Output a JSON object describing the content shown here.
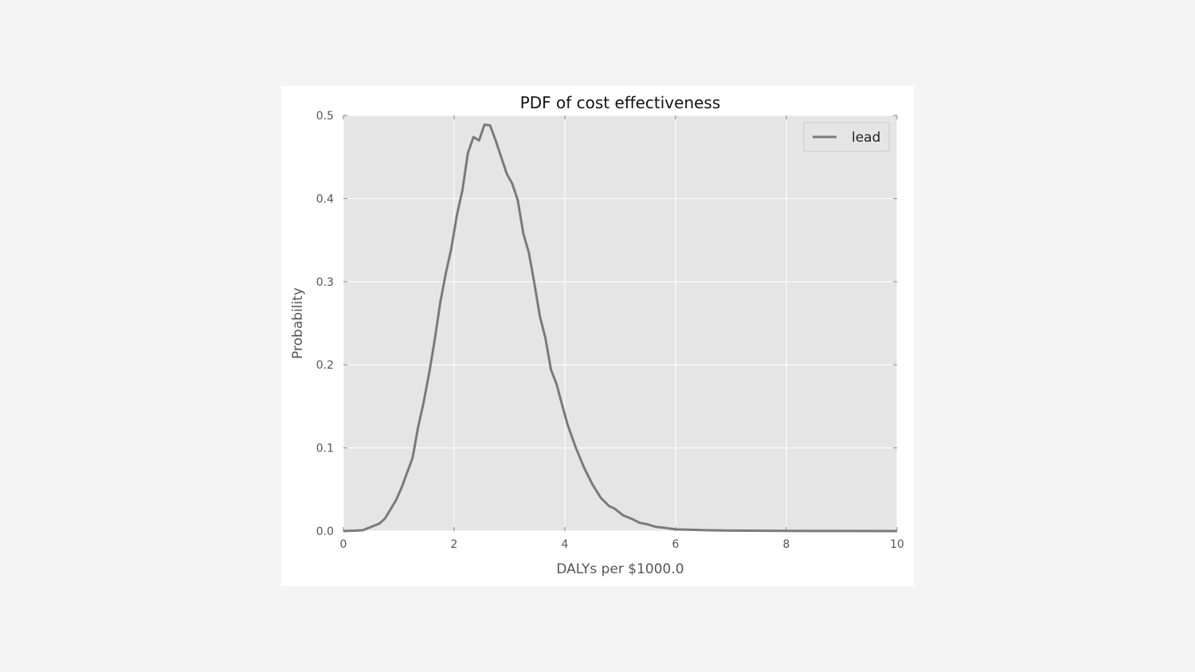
{
  "chart_data": {
    "type": "line",
    "title": "PDF of cost effectiveness",
    "xlabel": "DALYs per $1000.0",
    "ylabel": "Probability",
    "xlim": [
      0,
      10
    ],
    "ylim": [
      0,
      0.5
    ],
    "x_ticks": [
      0,
      2,
      4,
      6,
      8,
      10
    ],
    "x_tick_labels": [
      "0",
      "2",
      "4",
      "6",
      "8",
      "10"
    ],
    "y_ticks": [
      0,
      0.1,
      0.2,
      0.3,
      0.4,
      0.5
    ],
    "y_tick_labels": [
      "0.0",
      "0.1",
      "0.2",
      "0.3",
      "0.4",
      "0.5"
    ],
    "grid": true,
    "legend_position": "top-right",
    "colors": {
      "plot_background": "#e5e5e5",
      "grid": "#ffffff",
      "line": "#7a7a7a"
    },
    "series": [
      {
        "name": "lead",
        "x": [
          0,
          0.35,
          0.5,
          0.65,
          0.75,
          0.85,
          0.95,
          1.05,
          1.15,
          1.25,
          1.35,
          1.45,
          1.55,
          1.65,
          1.75,
          1.85,
          1.95,
          2.05,
          2.15,
          2.25,
          2.35,
          2.45,
          2.55,
          2.65,
          2.75,
          2.85,
          2.95,
          3.05,
          3.15,
          3.25,
          3.35,
          3.45,
          3.55,
          3.65,
          3.75,
          3.85,
          3.95,
          4.05,
          4.2,
          4.35,
          4.5,
          4.65,
          4.8,
          4.9,
          5.05,
          5.2,
          5.35,
          5.5,
          5.65,
          5.8,
          6.0,
          6.3,
          6.6,
          7.0,
          8.0,
          9.0,
          10.0
        ],
        "y": [
          0.0,
          0.001,
          0.005,
          0.009,
          0.015,
          0.026,
          0.037,
          0.052,
          0.07,
          0.088,
          0.125,
          0.155,
          0.19,
          0.23,
          0.275,
          0.31,
          0.34,
          0.38,
          0.41,
          0.455,
          0.474,
          0.47,
          0.489,
          0.488,
          0.47,
          0.45,
          0.43,
          0.418,
          0.398,
          0.358,
          0.335,
          0.298,
          0.258,
          0.232,
          0.194,
          0.177,
          0.152,
          0.128,
          0.1,
          0.076,
          0.056,
          0.04,
          0.03,
          0.027,
          0.019,
          0.015,
          0.01,
          0.008,
          0.005,
          0.004,
          0.002,
          0.0015,
          0.001,
          0.0006,
          0.0002,
          0.0001,
          0.0
        ]
      }
    ]
  }
}
